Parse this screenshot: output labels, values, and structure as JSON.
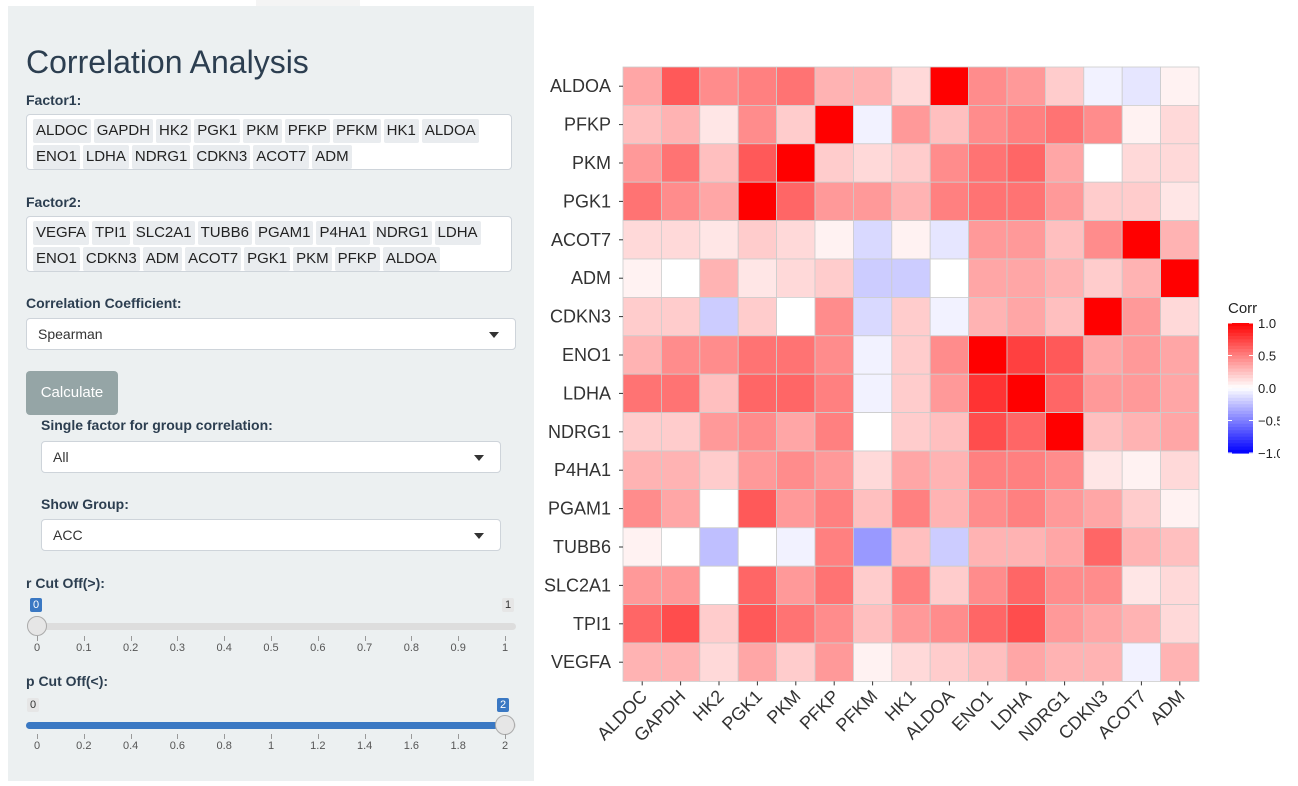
{
  "title": "Correlation Analysis",
  "factor1": {
    "label": "Factor1:",
    "tags": [
      "ALDOC",
      "GAPDH",
      "HK2",
      "PGK1",
      "PKM",
      "PFKP",
      "PFKM",
      "HK1",
      "ALDOA",
      "ENO1",
      "LDHA",
      "NDRG1",
      "CDKN3",
      "ACOT7",
      "ADM"
    ]
  },
  "factor2": {
    "label": "Factor2:",
    "tags": [
      "VEGFA",
      "TPI1",
      "SLC2A1",
      "TUBB6",
      "PGAM1",
      "P4HA1",
      "NDRG1",
      "LDHA",
      "ENO1",
      "CDKN3",
      "ADM",
      "ACOT7",
      "PGK1",
      "PKM",
      "PFKP",
      "ALDOA"
    ]
  },
  "coefficient": {
    "label": "Correlation Coefficient:",
    "value": "Spearman"
  },
  "calculate_label": "Calculate",
  "single_factor": {
    "label": "Single factor for group correlation:",
    "value": "All"
  },
  "show_group": {
    "label": "Show Group:",
    "value": "ACC"
  },
  "r_cutoff": {
    "label": "r Cut Off(>):",
    "min_label": "0",
    "max_label": "1",
    "value_label": "0",
    "value": 0,
    "min": 0,
    "max": 1,
    "ticks": [
      "0",
      "0.1",
      "0.2",
      "0.3",
      "0.4",
      "0.5",
      "0.6",
      "0.7",
      "0.8",
      "0.9",
      "1"
    ]
  },
  "p_cutoff": {
    "label": "p Cut Off(<):",
    "min_label": "0",
    "value_label": "2",
    "value": 2,
    "min": 0,
    "max": 2,
    "ticks": [
      "0",
      "0.2",
      "0.4",
      "0.6",
      "0.8",
      "1",
      "1.2",
      "1.4",
      "1.6",
      "1.8",
      "2"
    ]
  },
  "chart_data": {
    "type": "heatmap",
    "x": [
      "ALDOC",
      "GAPDH",
      "HK2",
      "PGK1",
      "PKM",
      "PFKP",
      "PFKM",
      "HK1",
      "ALDOA",
      "ENO1",
      "LDHA",
      "NDRG1",
      "CDKN3",
      "ACOT7",
      "ADM"
    ],
    "y": [
      "ALDOA",
      "PFKP",
      "PKM",
      "PGK1",
      "ACOT7",
      "ADM",
      "CDKN3",
      "ENO1",
      "LDHA",
      "NDRG1",
      "P4HA1",
      "PGAM1",
      "TUBB6",
      "SLC2A1",
      "TPI1",
      "VEGFA"
    ],
    "values": [
      [
        0.35,
        0.65,
        0.45,
        0.5,
        0.55,
        0.3,
        0.3,
        0.15,
        1.0,
        0.45,
        0.4,
        0.2,
        -0.05,
        -0.1,
        0.05
      ],
      [
        0.25,
        0.3,
        0.1,
        0.45,
        0.2,
        1.0,
        -0.05,
        0.4,
        0.25,
        0.45,
        0.5,
        0.55,
        0.45,
        0.05,
        0.15
      ],
      [
        0.4,
        0.55,
        0.25,
        0.65,
        1.0,
        0.2,
        0.15,
        0.2,
        0.45,
        0.55,
        0.6,
        0.35,
        0.0,
        0.15,
        0.15
      ],
      [
        0.55,
        0.45,
        0.35,
        1.0,
        0.6,
        0.4,
        0.4,
        0.3,
        0.5,
        0.55,
        0.55,
        0.4,
        0.2,
        0.2,
        0.1
      ],
      [
        0.15,
        0.15,
        0.1,
        0.2,
        0.15,
        0.05,
        -0.15,
        0.05,
        -0.1,
        0.4,
        0.4,
        0.25,
        0.45,
        1.0,
        0.3
      ],
      [
        0.05,
        0.0,
        0.3,
        0.1,
        0.15,
        0.2,
        -0.2,
        -0.2,
        0.0,
        0.35,
        0.35,
        0.3,
        0.2,
        0.3,
        1.0
      ],
      [
        0.2,
        0.2,
        -0.2,
        0.2,
        0.0,
        0.45,
        -0.15,
        0.2,
        -0.05,
        0.3,
        0.35,
        0.25,
        1.0,
        0.4,
        0.15
      ],
      [
        0.3,
        0.45,
        0.45,
        0.55,
        0.55,
        0.45,
        -0.05,
        0.2,
        0.45,
        1.0,
        0.75,
        0.65,
        0.35,
        0.4,
        0.35
      ],
      [
        0.55,
        0.55,
        0.25,
        0.6,
        0.6,
        0.5,
        -0.05,
        0.2,
        0.4,
        0.8,
        1.0,
        0.6,
        0.4,
        0.4,
        0.35
      ],
      [
        0.2,
        0.2,
        0.4,
        0.45,
        0.35,
        0.5,
        0.0,
        0.2,
        0.25,
        0.7,
        0.6,
        1.0,
        0.25,
        0.3,
        0.35
      ],
      [
        0.3,
        0.3,
        0.2,
        0.4,
        0.45,
        0.4,
        0.15,
        0.35,
        0.3,
        0.5,
        0.5,
        0.45,
        0.1,
        0.05,
        0.15
      ],
      [
        0.45,
        0.35,
        0.0,
        0.65,
        0.4,
        0.5,
        0.25,
        0.5,
        0.3,
        0.45,
        0.5,
        0.4,
        0.35,
        0.2,
        0.05
      ],
      [
        0.05,
        0.0,
        -0.25,
        0.0,
        -0.05,
        0.5,
        -0.4,
        0.25,
        -0.2,
        0.3,
        0.3,
        0.35,
        0.6,
        0.3,
        0.25
      ],
      [
        0.4,
        0.4,
        0.0,
        0.6,
        0.4,
        0.55,
        0.2,
        0.5,
        0.2,
        0.45,
        0.6,
        0.45,
        0.45,
        0.1,
        0.15
      ],
      [
        0.6,
        0.7,
        0.2,
        0.65,
        0.55,
        0.45,
        0.25,
        0.4,
        0.45,
        0.6,
        0.7,
        0.4,
        0.35,
        0.3,
        0.15
      ],
      [
        0.3,
        0.3,
        0.15,
        0.35,
        0.2,
        0.4,
        0.05,
        0.15,
        0.2,
        0.25,
        0.35,
        0.3,
        0.3,
        -0.05,
        0.3
      ]
    ],
    "legend": {
      "title": "Corr",
      "ticks": [
        "1.0",
        "0.5",
        "0.0",
        "−0.5",
        "−1.0"
      ],
      "tick_values": [
        1.0,
        0.5,
        0.0,
        -0.5,
        -1.0
      ]
    },
    "zlim": [
      -1,
      1
    ],
    "colors": {
      "low": "#0000ff",
      "mid": "#ffffff",
      "high": "#ff0000"
    },
    "grid": true
  }
}
